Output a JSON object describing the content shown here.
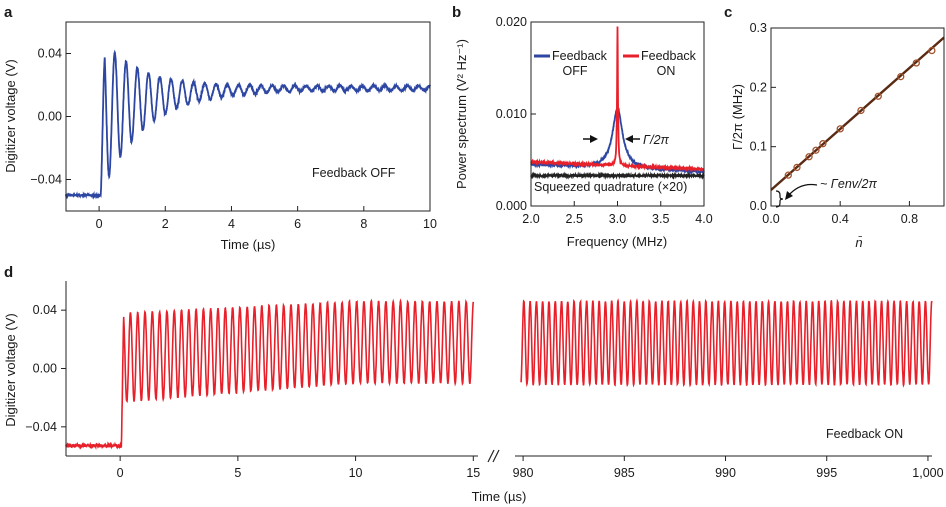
{
  "panel_labels": {
    "a": "a",
    "b": "b",
    "c": "c",
    "d": "d"
  },
  "colors": {
    "feedback_off": "#2c46a2",
    "feedback_on": "#e8202a",
    "squeezed": "#222222",
    "fit_line": "#5a2a12",
    "markers": "#a0522d"
  },
  "chart_data": [
    {
      "id": "a",
      "type": "line",
      "xlabel": "Time (µs)",
      "ylabel": "Digitizer voltage (V)",
      "xlim": [
        -1,
        10
      ],
      "ylim": [
        -0.06,
        0.06
      ],
      "xticks": [
        0,
        2,
        4,
        6,
        8,
        10
      ],
      "xtick_labels": [
        "0",
        "2",
        "4",
        "6",
        "8",
        "10"
      ],
      "yticks": [
        -0.04,
        0.0,
        0.04
      ],
      "ytick_labels": [
        "−0.04",
        "0.00",
        "0.04"
      ],
      "annotation": "Feedback OFF",
      "series": [
        {
          "color_key": "feedback_off",
          "model": "step-then-damped-oscillation",
          "baseline": -0.05,
          "step_time": 0.05,
          "rise_time": 0.12,
          "steady_mean": 0.018,
          "mean_start": 0.0,
          "mean_decay": 1.5,
          "amp_start": 0.048,
          "amp_decay": 1.25,
          "amp_floor": 0.0015,
          "period": 0.34,
          "noise": 0.0015
        }
      ]
    },
    {
      "id": "b",
      "type": "line",
      "xlabel": "Frequency (MHz)",
      "ylabel": "Power spectrum (V² Hz⁻¹)",
      "xlim": [
        2.0,
        4.0
      ],
      "ylim": [
        0.0,
        0.02
      ],
      "xticks": [
        2.0,
        2.5,
        3.0,
        3.5,
        4.0
      ],
      "xtick_labels": [
        "2.0",
        "2.5",
        "3.0",
        "3.5",
        "4.0"
      ],
      "yticks": [
        0.0,
        0.01,
        0.02
      ],
      "ytick_labels": [
        "0.000",
        "0.010",
        "0.020"
      ],
      "legend": [
        {
          "color_key": "feedback_off",
          "line1": "Feedback",
          "line2": "OFF"
        },
        {
          "color_key": "feedback_on",
          "line1": "Feedback",
          "line2": "ON"
        }
      ],
      "annotations": {
        "linewidth": "Γ/2π",
        "squeezed": "Squeezed quadrature (×20)"
      },
      "series": [
        {
          "name": "Feedback OFF",
          "color_key": "feedback_off",
          "model": "lorentzian",
          "center": 3.0,
          "peak": 0.0106,
          "hwhm": 0.07,
          "offset": 0.0045,
          "offset_slope": -0.0004
        },
        {
          "name": "Feedback ON",
          "color_key": "feedback_on",
          "model": "lorentzian",
          "center": 3.0,
          "peak": 0.0195,
          "hwhm": 0.006,
          "offset": 0.0048,
          "offset_slope": -0.0004
        },
        {
          "name": "Squeezed quadrature (×20)",
          "color_key": "squeezed",
          "model": "flat",
          "value": 0.0033
        }
      ]
    },
    {
      "id": "c",
      "type": "scatter",
      "xlabel": "n̄",
      "ylabel": "Γ/2π (MHz)",
      "xlim": [
        0.0,
        1.0
      ],
      "ylim": [
        0.0,
        0.3
      ],
      "xticks": [
        0.0,
        0.4,
        0.8
      ],
      "xtick_labels": [
        "0.0",
        "0.4",
        "0.8"
      ],
      "yticks": [
        0.0,
        0.1,
        0.2,
        0.3
      ],
      "ytick_labels": [
        "0.0",
        "0.1",
        "0.2",
        "0.3"
      ],
      "annotation": "~ Γenv/2π",
      "fit": {
        "intercept": 0.027,
        "slope": 0.257
      },
      "points": [
        {
          "x": 0.1,
          "y": 0.052
        },
        {
          "x": 0.15,
          "y": 0.065
        },
        {
          "x": 0.22,
          "y": 0.083
        },
        {
          "x": 0.26,
          "y": 0.094
        },
        {
          "x": 0.3,
          "y": 0.105
        },
        {
          "x": 0.4,
          "y": 0.13
        },
        {
          "x": 0.52,
          "y": 0.161
        },
        {
          "x": 0.62,
          "y": 0.185
        },
        {
          "x": 0.75,
          "y": 0.218
        },
        {
          "x": 0.84,
          "y": 0.241
        },
        {
          "x": 0.93,
          "y": 0.262
        }
      ]
    },
    {
      "id": "d",
      "type": "line",
      "xlabel": "Time (µs)",
      "ylabel": "Digitizer voltage (V)",
      "ylim": [
        -0.06,
        0.06
      ],
      "yticks": [
        -0.04,
        0.0,
        0.04
      ],
      "ytick_labels": [
        "−0.04",
        "0.00",
        "0.04"
      ],
      "annotation": "Feedback ON",
      "broken_axis": [
        {
          "xlim": [
            -2.3,
            15.2
          ],
          "xticks": [
            0,
            5,
            10,
            15
          ],
          "xtick_labels": [
            "0",
            "5",
            "10",
            "15"
          ]
        },
        {
          "xlim": [
            979.6,
            1000.2
          ],
          "xticks": [
            980,
            985,
            990,
            995,
            1000
          ],
          "xtick_labels": [
            "980",
            "985",
            "990",
            "995",
            "1,000"
          ]
        }
      ],
      "series": [
        {
          "color_key": "feedback_on",
          "model": "step-then-sustained-oscillation",
          "baseline": -0.053,
          "step_time": 0.05,
          "rise_time": 0.1,
          "period": 0.31,
          "max_start": 0.038,
          "max_end": 0.046,
          "min_start": -0.023,
          "min_end": -0.01,
          "settle_time": 10,
          "late_max": 0.046,
          "late_min": -0.011,
          "noise": 0.0012
        }
      ]
    }
  ]
}
